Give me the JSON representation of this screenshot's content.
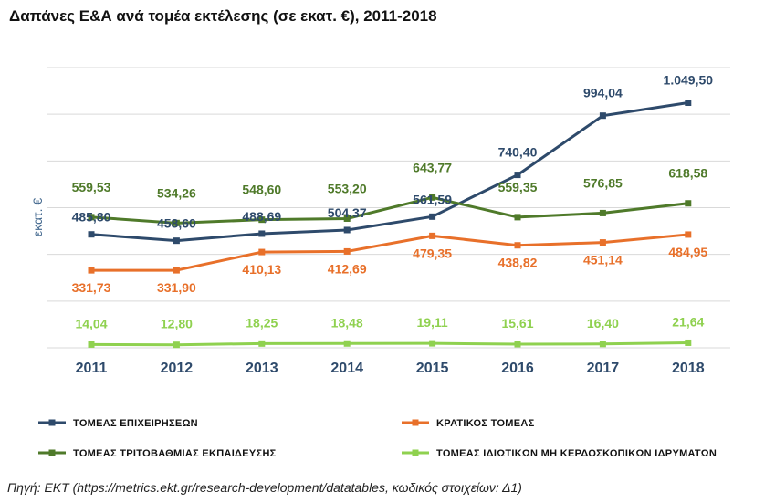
{
  "chart_data": {
    "type": "line",
    "title": "Δαπάνες Ε&Α ανά τομέα εκτέλεσης (σε εκατ. €), 2011-2018",
    "ylabel": "εκατ. €",
    "xlabel": "",
    "categories": [
      "2011",
      "2012",
      "2013",
      "2014",
      "2015",
      "2016",
      "2017",
      "2018"
    ],
    "ylim": [
      0,
      1200
    ],
    "grid": true,
    "legend_position": "bottom",
    "series": [
      {
        "name": "ΤΟΜΕΑΣ ΕΠΙΧΕΙΡΗΣΕΩΝ",
        "color": "#2e4a6b",
        "values": [
          485.8,
          458.6,
          488.69,
          504.37,
          561.59,
          740.4,
          994.04,
          1049.5
        ],
        "labels": [
          "485,80",
          "458,60",
          "488,69",
          "504,37",
          "561,59",
          "740,40",
          "994,04",
          "1.049,50"
        ]
      },
      {
        "name": "ΚΡΑΤΙΚΟΣ ΤΟΜΕΑΣ",
        "color": "#e8702a",
        "values": [
          331.73,
          331.9,
          410.13,
          412.69,
          479.35,
          438.82,
          451.14,
          484.95
        ],
        "labels": [
          "331,73",
          "331,90",
          "410,13",
          "412,69",
          "479,35",
          "438,82",
          "451,14",
          "484,95"
        ]
      },
      {
        "name": "ΤΟΜΕΑΣ ΤΡΙΤΟΒΑΘΜΙΑΣ ΕΚΠΑΙΔΕΥΣΗΣ",
        "color": "#4f7a2a",
        "values": [
          559.53,
          534.26,
          548.6,
          553.2,
          643.77,
          559.35,
          576.85,
          618.58
        ],
        "labels": [
          "559,53",
          "534,26",
          "548,60",
          "553,20",
          "643,77",
          "559,35",
          "576,85",
          "618,58"
        ]
      },
      {
        "name": "ΤΟΜΕΑΣ ΙΔΙΩΤΙΚΩΝ ΜΗ ΚΕΡΔΟΣΚΟΠΙΚΩΝ ΙΔΡΥΜΑΤΩΝ",
        "color": "#8fd14f",
        "values": [
          14.04,
          12.8,
          18.25,
          18.48,
          19.11,
          15.61,
          16.4,
          21.64
        ],
        "labels": [
          "14,04",
          "12,80",
          "18,25",
          "18,48",
          "19,11",
          "15,61",
          "16,40",
          "21,64"
        ]
      }
    ]
  },
  "source": "Πηγή: ΕΚΤ (https://metrics.ekt.gr/research-development/datatables, κωδικός στοιχείων: Δ1)"
}
